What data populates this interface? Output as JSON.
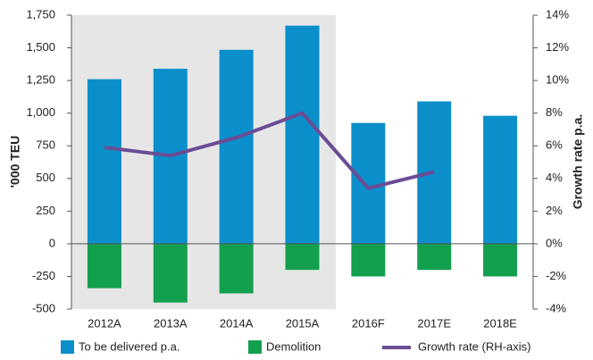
{
  "chart_data": {
    "type": "bar",
    "categories": [
      "2012A",
      "2013A",
      "2014A",
      "2015A",
      "2016F",
      "2017E",
      "2018E"
    ],
    "series": [
      {
        "name": "To be delivered p.a.",
        "color": "#0b8fca",
        "values": [
          1260,
          1340,
          1485,
          1670,
          925,
          1090,
          980
        ]
      },
      {
        "name": "Demolition",
        "color": "#12a04e",
        "values": [
          -340,
          -450,
          -380,
          -200,
          -250,
          -200,
          -250
        ]
      },
      {
        "name": "Growth rate (RH-axis)",
        "color": "#6b4c94",
        "type": "line",
        "axis": "y2",
        "values": [
          5.9,
          5.4,
          6.5,
          8.0,
          3.4,
          4.4,
          null
        ]
      }
    ],
    "ylabel": "'000 TEU",
    "y2label": "Growth rate p.a.",
    "ylim": [
      -500,
      1750
    ],
    "yticks": [
      {
        "value": -500,
        "label": "-500"
      },
      {
        "value": -250,
        "label": "-250"
      },
      0,
      250,
      500,
      750,
      {
        "value": 1000,
        "label": "1,000"
      },
      {
        "value": 1250,
        "label": "1,250"
      },
      {
        "value": 1500,
        "label": "1,500"
      },
      {
        "value": 1750,
        "label": "1,750"
      }
    ],
    "y2lim": [
      -4,
      14
    ],
    "y2ticks": [
      {
        "value": -4,
        "label": "-4%"
      },
      {
        "value": -2,
        "label": "-2%"
      },
      {
        "value": 0,
        "label": "0%"
      },
      {
        "value": 2,
        "label": "2%"
      },
      {
        "value": 4,
        "label": "4%"
      },
      {
        "value": 6,
        "label": "6%"
      },
      {
        "value": 8,
        "label": "8%"
      },
      {
        "value": 10,
        "label": "10%"
      },
      {
        "value": 12,
        "label": "12%"
      },
      {
        "value": 14,
        "label": "14%"
      }
    ],
    "legend": "bottom"
  }
}
